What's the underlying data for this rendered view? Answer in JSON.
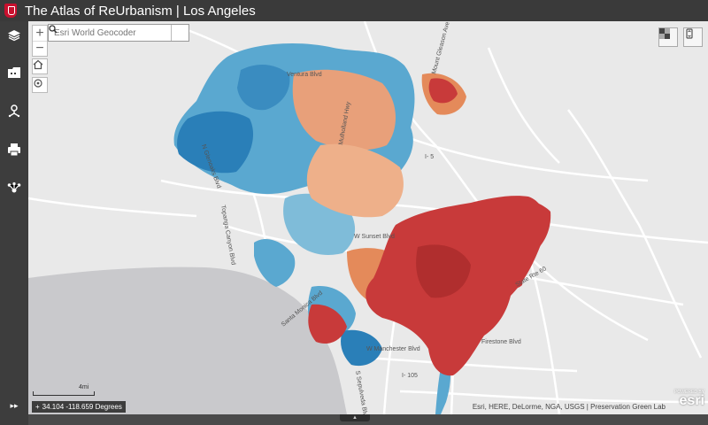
{
  "app": {
    "title": "The Atlas of ReUrbanism | Los Angeles"
  },
  "search": {
    "placeholder": "Esri World Geocoder"
  },
  "zoom": {
    "in_label": "+",
    "out_label": "−"
  },
  "roads": {
    "r1": "N Glenoaks Blvd",
    "r2": "Mulholland Hwy",
    "r3": "Topanga Canyon Blvd",
    "r4": "W Sunset Blvd",
    "r5": "Santa Monica Blvd",
    "r6": "W Manchester Blvd",
    "r7": "Firestone Blvd",
    "r8": "S Sepulveda Blvd",
    "r9": "State Rte 60",
    "r10": "I- 105",
    "r11": "I- 5",
    "r12": "Ventura Blvd",
    "r13": "Mount Gleason Ave"
  },
  "scale": {
    "label": "4mi"
  },
  "coords": {
    "text": "34.104 -118.659 Degrees"
  },
  "attribution": "Esri, HERE, DeLorme, NGA, USGS | Preservation Green Lab",
  "esri_logo": {
    "powered": "POWERED BY",
    "brand": "esri"
  },
  "colors": {
    "hot": "#c83a3a",
    "warm": "#e48a5a",
    "cool": "#5aa8d0",
    "cold": "#2a7fb8",
    "ocean": "#c9c9cc",
    "bg": "#e9e9e9"
  }
}
